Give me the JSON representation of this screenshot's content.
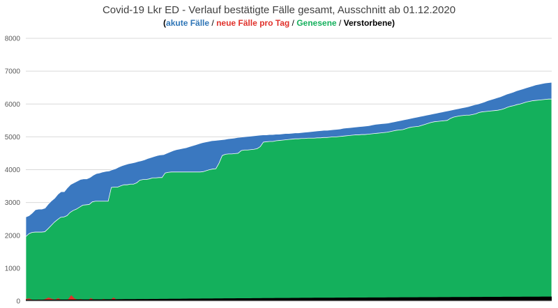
{
  "chart_data": {
    "type": "area",
    "title": "Covid-19 Lkr ED - Verlauf bestätigte Fälle gesamt, Ausschnitt ab 01.12.2020",
    "subtitle": {
      "open": "(",
      "close": ")",
      "separator": " / "
    },
    "ylim": [
      0,
      8000
    ],
    "yticks": [
      0,
      1000,
      2000,
      3000,
      4000,
      5000,
      6000,
      7000,
      8000
    ],
    "grid": true,
    "legend": "top",
    "series": [
      {
        "name": "akute Fälle",
        "color": "#3a78c0",
        "note": "drawn as total confirmed (top of blue area)",
        "values": [
          2560,
          2600,
          2680,
          2780,
          2800,
          2800,
          2830,
          2950,
          3050,
          3130,
          3250,
          3330,
          3330,
          3450,
          3550,
          3600,
          3650,
          3700,
          3720,
          3720,
          3760,
          3830,
          3880,
          3900,
          3930,
          3950,
          3960,
          4000,
          4030,
          4080,
          4120,
          4150,
          4180,
          4200,
          4220,
          4250,
          4270,
          4300,
          4340,
          4370,
          4400,
          4430,
          4450,
          4460,
          4500,
          4540,
          4580,
          4610,
          4630,
          4650,
          4670,
          4700,
          4730,
          4760,
          4790,
          4820,
          4840,
          4860,
          4880,
          4890,
          4900,
          4910,
          4920,
          4940,
          4950,
          4960,
          4980,
          4990,
          5000,
          5010,
          5020,
          5030,
          5040,
          5050,
          5060,
          5060,
          5070,
          5070,
          5080,
          5080,
          5090,
          5100,
          5100,
          5110,
          5120,
          5120,
          5130,
          5140,
          5150,
          5160,
          5170,
          5180,
          5190,
          5200,
          5200,
          5210,
          5220,
          5230,
          5240,
          5260,
          5270,
          5280,
          5290,
          5300,
          5310,
          5320,
          5330,
          5340,
          5360,
          5380,
          5390,
          5400,
          5410,
          5420,
          5440,
          5460,
          5480,
          5500,
          5520,
          5540,
          5560,
          5580,
          5600,
          5620,
          5640,
          5660,
          5680,
          5700,
          5720,
          5740,
          5760,
          5780,
          5800,
          5820,
          5840,
          5860,
          5880,
          5900,
          5920,
          5950,
          5980,
          6000,
          6030,
          6060,
          6100,
          6130,
          6160,
          6190,
          6220,
          6260,
          6300,
          6330,
          6360,
          6400,
          6430,
          6460,
          6490,
          6520,
          6550,
          6580,
          6600,
          6620,
          6640,
          6650,
          6660
        ]
      },
      {
        "name": "Genesene",
        "color": "#14b05c",
        "values": [
          1960,
          2050,
          2090,
          2100,
          2100,
          2100,
          2110,
          2200,
          2300,
          2400,
          2480,
          2550,
          2560,
          2600,
          2700,
          2760,
          2800,
          2860,
          2920,
          2930,
          2940,
          3020,
          3040,
          3040,
          3040,
          3040,
          3040,
          3460,
          3470,
          3470,
          3510,
          3540,
          3540,
          3560,
          3560,
          3600,
          3680,
          3700,
          3700,
          3720,
          3750,
          3750,
          3760,
          3760,
          3900,
          3920,
          3930,
          3930,
          3930,
          3930,
          3930,
          3930,
          3930,
          3930,
          3930,
          3930,
          3940,
          3970,
          4000,
          4020,
          4030,
          4200,
          4430,
          4470,
          4480,
          4480,
          4490,
          4500,
          4580,
          4600,
          4600,
          4610,
          4620,
          4640,
          4700,
          4840,
          4850,
          4860,
          4860,
          4880,
          4890,
          4900,
          4910,
          4920,
          4930,
          4940,
          4940,
          4950,
          4950,
          4960,
          4960,
          4960,
          4970,
          4970,
          4980,
          4980,
          4990,
          5000,
          5000,
          5010,
          5020,
          5030,
          5040,
          5050,
          5060,
          5060,
          5070,
          5070,
          5080,
          5090,
          5100,
          5110,
          5120,
          5130,
          5140,
          5160,
          5180,
          5200,
          5210,
          5220,
          5250,
          5280,
          5300,
          5310,
          5320,
          5350,
          5380,
          5410,
          5440,
          5460,
          5470,
          5480,
          5490,
          5500,
          5560,
          5600,
          5620,
          5640,
          5650,
          5660,
          5660,
          5680,
          5700,
          5740,
          5760,
          5770,
          5780,
          5790,
          5800,
          5810,
          5830,
          5860,
          5900,
          5930,
          5950,
          5980,
          6000,
          6030,
          6060,
          6080,
          6100,
          6110,
          6120,
          6130,
          6140,
          6150,
          6150
        ]
      },
      {
        "name": "neue Fälle pro Tag",
        "color": "#e0312b",
        "values": [
          60,
          80,
          40,
          30,
          50,
          20,
          60,
          110,
          70,
          40,
          90,
          30,
          10,
          50,
          180,
          80,
          40,
          60,
          30,
          20,
          90,
          40,
          50,
          30,
          70,
          20,
          30,
          110,
          40,
          30,
          60,
          20,
          50,
          30,
          40,
          20,
          60,
          30,
          40,
          70,
          20,
          30,
          50,
          40,
          30,
          60,
          20,
          40,
          30,
          50,
          20,
          30,
          40,
          20,
          30,
          20,
          40,
          30,
          20,
          30,
          20,
          40,
          30,
          20,
          30,
          40,
          20,
          30,
          20,
          30,
          40,
          20,
          30,
          20,
          40,
          30,
          20,
          30,
          20,
          30,
          20,
          40,
          30,
          20,
          30,
          20,
          30,
          40,
          20,
          30,
          20,
          30,
          20,
          40,
          30,
          20,
          30,
          20,
          30,
          40,
          20,
          30,
          20,
          30,
          50,
          20,
          30,
          20,
          40,
          30,
          20,
          30,
          20,
          40,
          30,
          20,
          30,
          20,
          40,
          30,
          20,
          50,
          30,
          20,
          30,
          40,
          20,
          30,
          20,
          60,
          30,
          20,
          40,
          30,
          20,
          50,
          30,
          20,
          40,
          30,
          20,
          70,
          30,
          20,
          40,
          30,
          50,
          20,
          30,
          40,
          20,
          60,
          30,
          20,
          40,
          30,
          20,
          30,
          40,
          20,
          30,
          20,
          30
        ]
      },
      {
        "name": "Verstorbene",
        "color": "#000000",
        "values": [
          40,
          40,
          40,
          40,
          41,
          41,
          42,
          42,
          43,
          43,
          44,
          44,
          45,
          45,
          46,
          46,
          47,
          47,
          48,
          48,
          49,
          50,
          50,
          51,
          51,
          52,
          53,
          54,
          54,
          55,
          56,
          57,
          58,
          58,
          59,
          60,
          61,
          62,
          62,
          63,
          64,
          65,
          66,
          66,
          67,
          68,
          69,
          70,
          70,
          71,
          72,
          73,
          74,
          74,
          75,
          76,
          77,
          78,
          78,
          79,
          80,
          80,
          81,
          82,
          82,
          83,
          84,
          84,
          85,
          86,
          86,
          87,
          88,
          88,
          89,
          90,
          90,
          91,
          92,
          92,
          93,
          94,
          94,
          95,
          96,
          96,
          97,
          98,
          98,
          99,
          100,
          100,
          100,
          101,
          101,
          102,
          102,
          103,
          103,
          104,
          104,
          105,
          105,
          106,
          106,
          107,
          107,
          108,
          108,
          109,
          109,
          110,
          110,
          111,
          111,
          112,
          112,
          113,
          113,
          114,
          114,
          115,
          115,
          116,
          116,
          117,
          117,
          118,
          118,
          119,
          119,
          120,
          120,
          121,
          121,
          122,
          122,
          123,
          123,
          124,
          124,
          125,
          125,
          126,
          126,
          127,
          127,
          128,
          128,
          129,
          129,
          130,
          130,
          131,
          131,
          132,
          132,
          133,
          133,
          134,
          134,
          135,
          135,
          136,
          136
        ]
      }
    ]
  }
}
